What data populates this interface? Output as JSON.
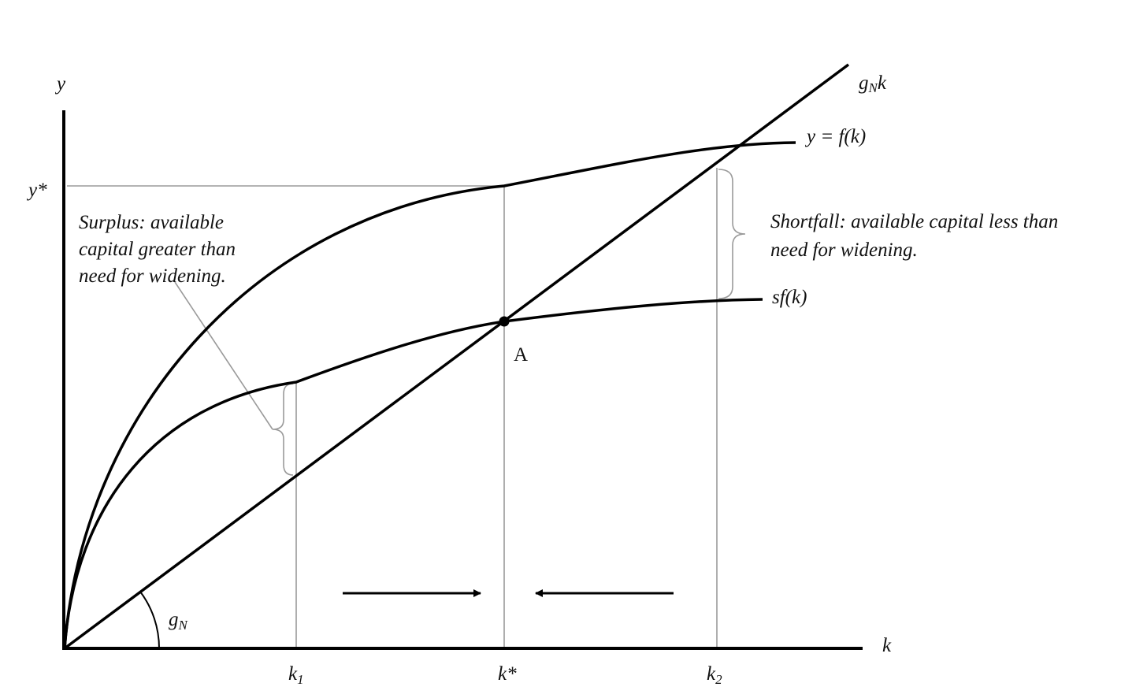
{
  "axes": {
    "y": "y",
    "x": "k"
  },
  "y_star": "y*",
  "k1": {
    "base": "k",
    "sub": "1"
  },
  "k_star": "k*",
  "k2": {
    "base": "k",
    "sub": "2"
  },
  "curves": {
    "gnk": {
      "base": "g",
      "sub": "N",
      "tail": "k"
    },
    "f": "y = f(k)",
    "sf": "sf(k)"
  },
  "point": "A",
  "angle": {
    "base": "g",
    "sub": "N"
  },
  "surplus": [
    "Surplus:  available",
    "capital greater than",
    "need for widening."
  ],
  "shortfall": [
    "Shortfall:  available capital less than",
    "need for widening."
  ]
}
